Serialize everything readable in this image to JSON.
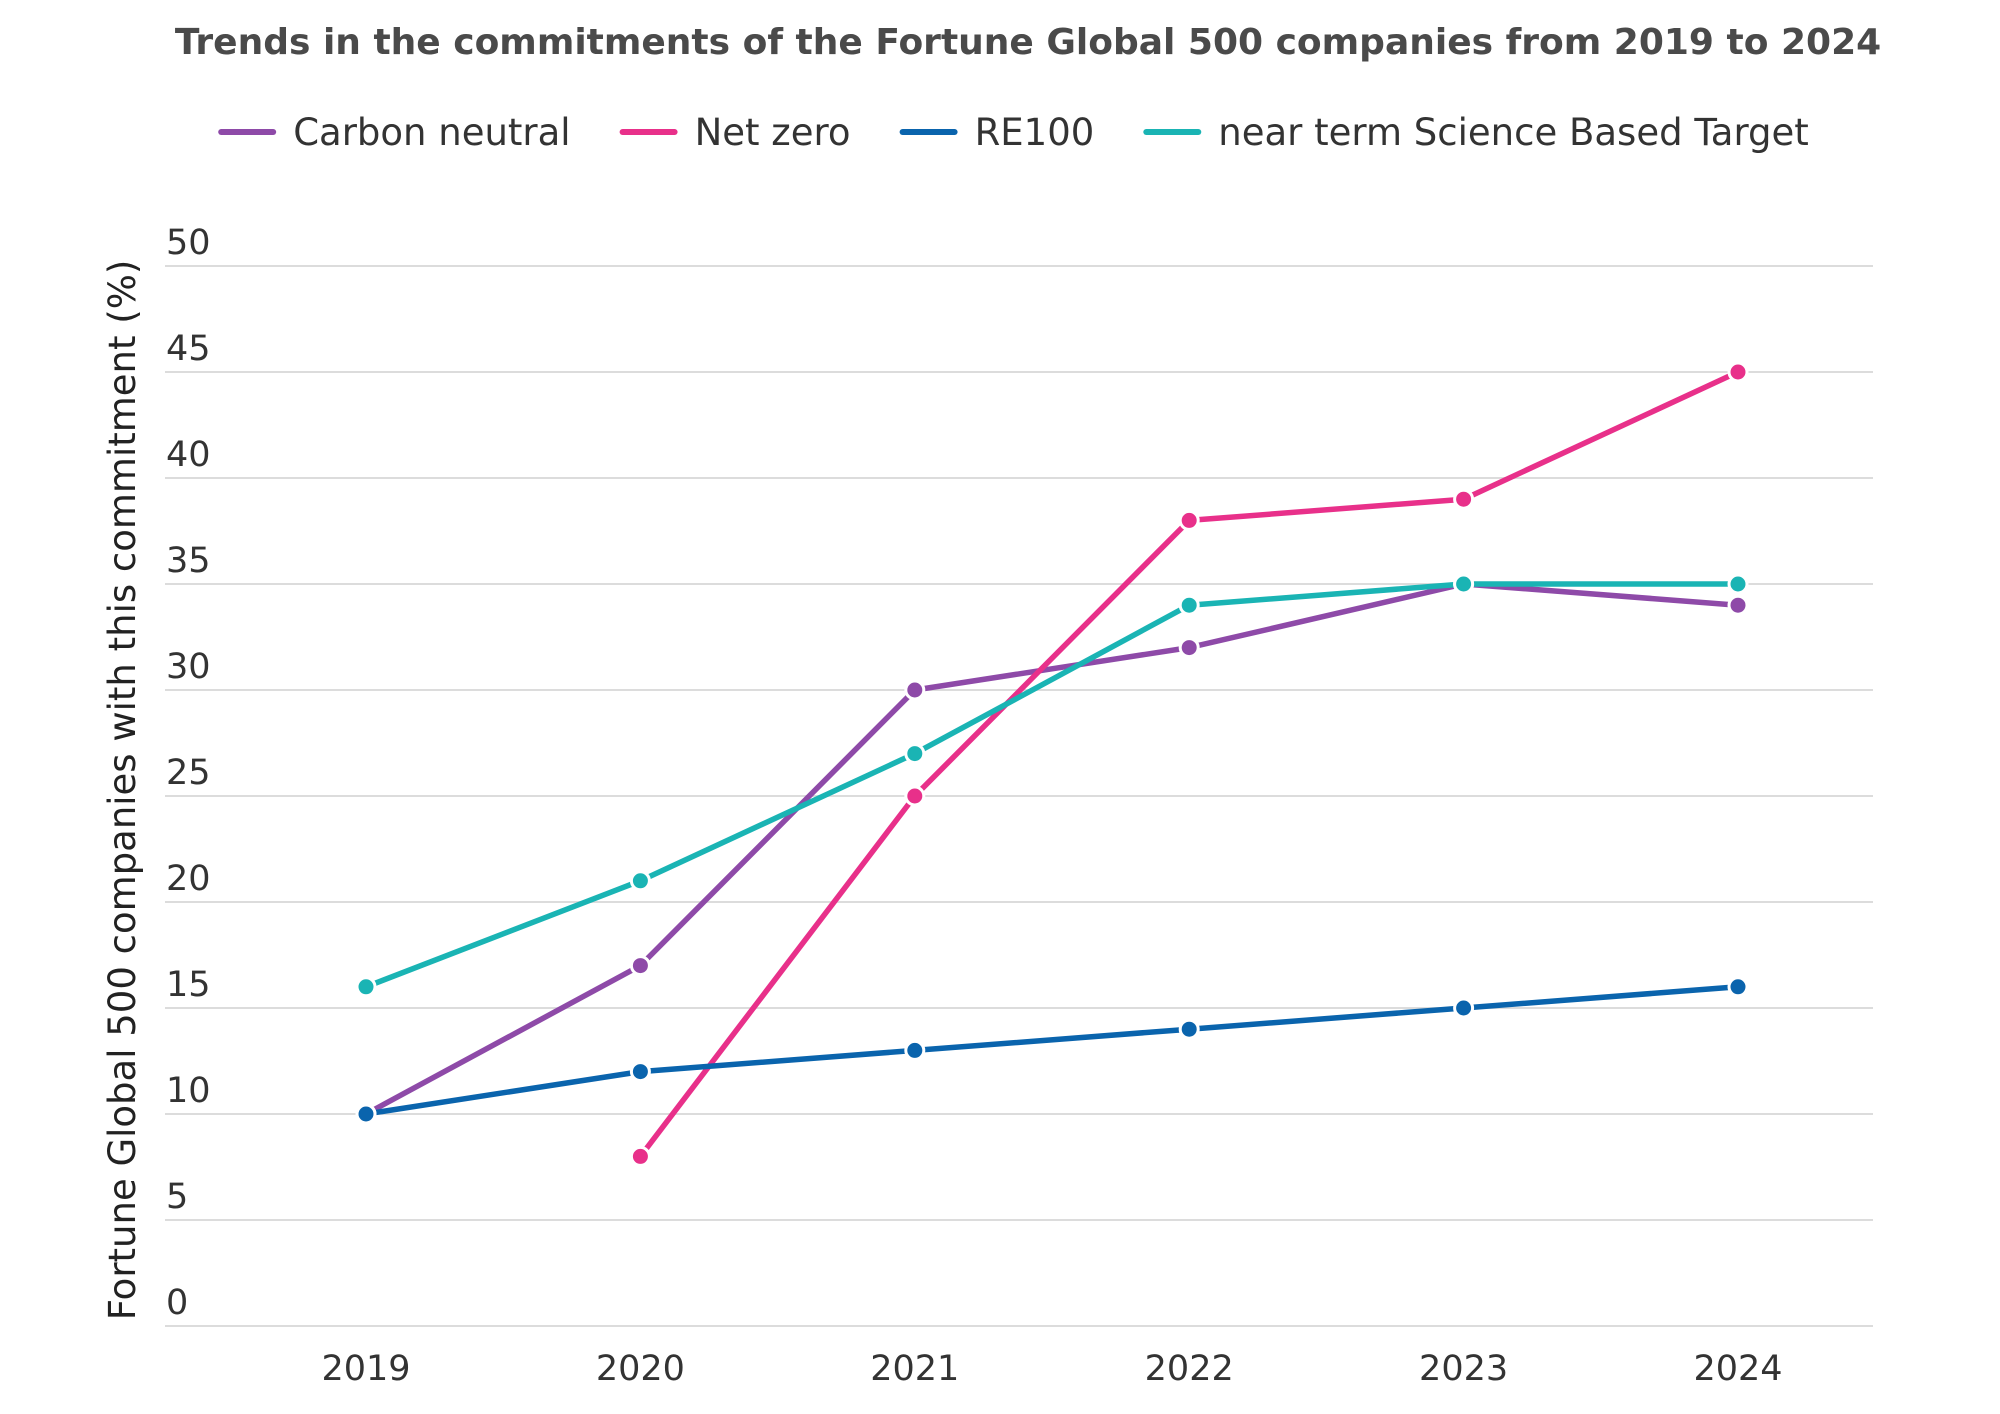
{
  "chart_data": {
    "type": "line",
    "title": "Trends in the commitments of the Fortune Global 500 companies from 2019 to 2024",
    "xlabel": "",
    "ylabel": "Fortune Global 500 companies with this commitment (%)",
    "x": [
      "2019",
      "2020",
      "2021",
      "2022",
      "2023",
      "2024"
    ],
    "ylim": [
      0,
      50
    ],
    "yticks": [
      0,
      5,
      10,
      15,
      20,
      25,
      30,
      35,
      40,
      45,
      50
    ],
    "grid": true,
    "legend_position": "top",
    "series": [
      {
        "name": "Carbon neutral",
        "color": "#8e4aa8",
        "values": [
          10,
          17,
          30,
          32,
          35,
          34
        ]
      },
      {
        "name": "Net zero",
        "color": "#e8308a",
        "values": [
          null,
          8,
          25,
          38,
          39,
          45
        ]
      },
      {
        "name": "RE100",
        "color": "#0a64ad",
        "values": [
          10,
          12,
          13,
          14,
          15,
          16
        ]
      },
      {
        "name": "near term Science Based Target",
        "color": "#1ab4b4",
        "values": [
          16,
          21,
          27,
          34,
          35,
          35
        ]
      }
    ]
  }
}
